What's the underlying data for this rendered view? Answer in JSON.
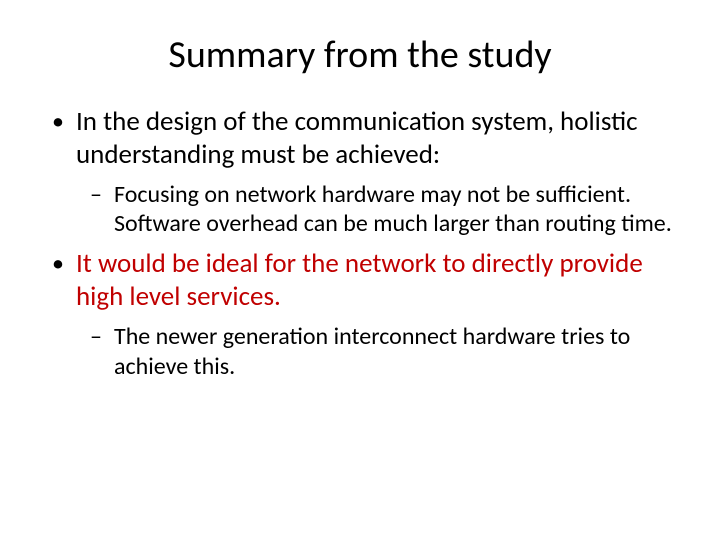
{
  "title": "Summary from the study",
  "colors": {
    "text": "#000000",
    "accent": "#c00000",
    "background": "#ffffff"
  },
  "typography": {
    "title_fontsize": 38,
    "level1_fontsize": 27,
    "level2_fontsize": 24,
    "font_family": "Calibri"
  },
  "bullets": [
    {
      "text": "In the design of the communication system, holistic understanding must be achieved:",
      "color": "#000000",
      "sub": [
        {
          "text": "Focusing on network hardware may not be sufficient. Software overhead can be much larger than routing time.",
          "color": "#000000"
        }
      ]
    },
    {
      "text": "It would be ideal for the network to directly provide high level services.",
      "color": "#c00000",
      "sub": [
        {
          "text": "The newer generation interconnect hardware tries to achieve this.",
          "color": "#000000"
        }
      ]
    }
  ]
}
